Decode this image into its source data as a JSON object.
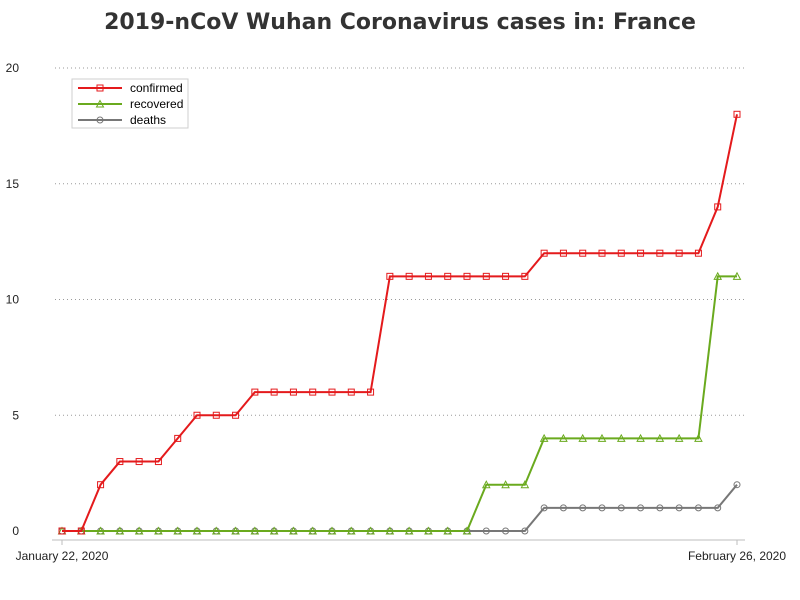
{
  "title": "2019-nCoV Wuhan Coronavirus cases in: France",
  "chart_data": {
    "type": "line",
    "title": "2019-nCoV Wuhan Coronavirus cases in: France",
    "xlabel": "",
    "ylabel": "",
    "x_start_label": "January 22, 2020",
    "x_end_label": "February 26, 2020",
    "x": [
      "2020-01-22",
      "2020-01-23",
      "2020-01-24",
      "2020-01-25",
      "2020-01-26",
      "2020-01-27",
      "2020-01-28",
      "2020-01-29",
      "2020-01-30",
      "2020-01-31",
      "2020-02-01",
      "2020-02-02",
      "2020-02-03",
      "2020-02-04",
      "2020-02-05",
      "2020-02-06",
      "2020-02-07",
      "2020-02-08",
      "2020-02-09",
      "2020-02-10",
      "2020-02-11",
      "2020-02-12",
      "2020-02-13",
      "2020-02-14",
      "2020-02-15",
      "2020-02-16",
      "2020-02-17",
      "2020-02-18",
      "2020-02-19",
      "2020-02-20",
      "2020-02-21",
      "2020-02-22",
      "2020-02-23",
      "2020-02-24",
      "2020-02-25",
      "2020-02-26"
    ],
    "ylim": [
      0,
      20
    ],
    "yticks": [
      0,
      5,
      10,
      15,
      20
    ],
    "grid": "horizontal dotted",
    "legend_position": "top-left",
    "series": [
      {
        "name": "confirmed",
        "color": "#e41a1c",
        "marker": "square",
        "values": [
          0,
          0,
          2,
          3,
          3,
          3,
          4,
          5,
          5,
          5,
          6,
          6,
          6,
          6,
          6,
          6,
          6,
          11,
          11,
          11,
          11,
          11,
          11,
          11,
          11,
          12,
          12,
          12,
          12,
          12,
          12,
          12,
          12,
          12,
          14,
          18
        ]
      },
      {
        "name": "recovered",
        "color": "#6aaa1e",
        "marker": "triangle",
        "values": [
          0,
          0,
          0,
          0,
          0,
          0,
          0,
          0,
          0,
          0,
          0,
          0,
          0,
          0,
          0,
          0,
          0,
          0,
          0,
          0,
          0,
          0,
          2,
          2,
          2,
          4,
          4,
          4,
          4,
          4,
          4,
          4,
          4,
          4,
          11,
          11
        ]
      },
      {
        "name": "deaths",
        "color": "#777777",
        "marker": "circle",
        "values": [
          0,
          0,
          0,
          0,
          0,
          0,
          0,
          0,
          0,
          0,
          0,
          0,
          0,
          0,
          0,
          0,
          0,
          0,
          0,
          0,
          0,
          0,
          0,
          0,
          0,
          1,
          1,
          1,
          1,
          1,
          1,
          1,
          1,
          1,
          1,
          2
        ]
      }
    ]
  }
}
